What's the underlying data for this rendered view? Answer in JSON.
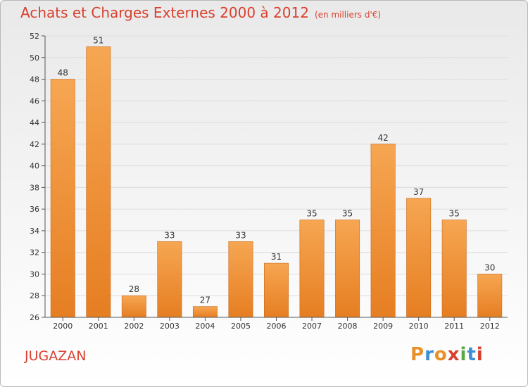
{
  "header": {
    "title": "Achats et Charges Externes 2000 à 2012",
    "unit": "(en milliers d'€)"
  },
  "footer": {
    "place": "JUGAZAN",
    "logo_letters": [
      "P",
      "r",
      "o",
      "x",
      "i",
      "t",
      "i"
    ],
    "logo_colors": [
      "#e8912a",
      "#3a8fd6",
      "#e8912a",
      "#d9402f",
      "#58a845",
      "#3a8fd6",
      "#d9402f"
    ]
  },
  "colors": {
    "title": "#d9402f",
    "bar_top": "#f6a652",
    "bar_bottom": "#e67e22",
    "bar_edge": "#c9691a"
  },
  "chart_data": {
    "type": "bar",
    "title": "Achats et Charges Externes 2000 à 2012",
    "subtitle": "(en milliers d'€)",
    "categories": [
      "2000",
      "2001",
      "2002",
      "2003",
      "2004",
      "2005",
      "2006",
      "2007",
      "2008",
      "2009",
      "2010",
      "2011",
      "2012"
    ],
    "values": [
      48,
      51,
      28,
      33,
      27,
      33,
      31,
      35,
      35,
      42,
      37,
      35,
      30
    ],
    "ylim": [
      26,
      52
    ],
    "yticks": [
      26,
      28,
      30,
      32,
      34,
      36,
      38,
      40,
      42,
      44,
      46,
      48,
      50,
      52
    ],
    "grid": true,
    "data_labels": true
  }
}
